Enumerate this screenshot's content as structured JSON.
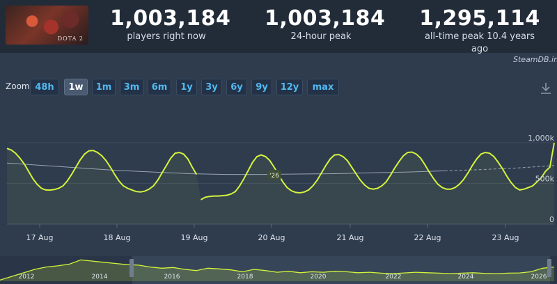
{
  "game": {
    "name": "DOTA 2"
  },
  "stats": [
    {
      "value": "1,003,184",
      "label": "players right now"
    },
    {
      "value": "1,003,184",
      "label": "24-hour peak"
    },
    {
      "value": "1,295,114",
      "label": "all-time peak 10.4 years ago"
    }
  ],
  "watermark": "SteamDB.info",
  "zoom": {
    "label": "Zoom",
    "buttons": [
      "48h",
      "1w",
      "1m",
      "3m",
      "6m",
      "1y",
      "3y",
      "6y",
      "9y",
      "12y",
      "max"
    ],
    "active": "1w"
  },
  "colors": {
    "line": "#d4f53c",
    "accent": "#52b8f0",
    "average": "#9aa5b2"
  },
  "chart_data": {
    "type": "line",
    "x_tick_labels": [
      "17 Aug",
      "18 Aug",
      "19 Aug",
      "20 Aug",
      "21 Aug",
      "22 Aug",
      "23 Aug"
    ],
    "y_tick_labels": [
      "1,000k",
      "500k",
      "0"
    ],
    "ylim": [
      0,
      1000000
    ],
    "series": [
      {
        "values": [
          930000,
          910000,
          870000,
          810000,
          740000,
          650000,
          560000,
          490000,
          440000,
          420000,
          418000,
          425000,
          440000,
          470000,
          530000,
          610000,
          700000,
          790000,
          860000,
          900000,
          905000,
          880000,
          840000,
          780000,
          700000,
          610000,
          530000,
          470000,
          440000,
          420000,
          400000,
          395000,
          405000,
          430000,
          470000,
          540000,
          630000,
          720000,
          810000,
          870000,
          880000,
          860000,
          800000,
          700000,
          610000,
          300000,
          330000,
          340000,
          345000,
          345000,
          350000,
          355000,
          370000,
          400000,
          470000,
          560000,
          660000,
          760000,
          830000,
          850000,
          830000,
          780000,
          700000,
          610000,
          520000,
          450000,
          410000,
          390000,
          385000,
          395000,
          420000,
          470000,
          540000,
          630000,
          720000,
          800000,
          850000,
          855000,
          830000,
          780000,
          700000,
          620000,
          540000,
          480000,
          440000,
          430000,
          440000,
          470000,
          520000,
          600000,
          690000,
          770000,
          840000,
          880000,
          885000,
          860000,
          810000,
          730000,
          640000,
          560000,
          490000,
          450000,
          430000,
          430000,
          450000,
          490000,
          550000,
          630000,
          720000,
          800000,
          860000,
          880000,
          870000,
          830000,
          760000,
          680000,
          590000,
          510000,
          450000,
          420000,
          430000,
          450000,
          470000,
          520000,
          570000,
          650000,
          700000,
          1000000
        ]
      }
    ],
    "average": [
      750000,
      720000,
      690000,
      660000,
      640000,
      620000,
      610000,
      610000,
      615000,
      620000,
      630000,
      640000,
      655000,
      670000,
      690000,
      720000
    ],
    "overview": {
      "x_tick_labels": [
        "2012",
        "2014",
        "2016",
        "2018",
        "2020",
        "2022",
        "2024",
        "2026"
      ],
      "series": [
        5,
        20,
        35,
        50,
        60,
        65,
        72,
        90,
        85,
        80,
        75,
        70,
        68,
        60,
        55,
        58,
        50,
        45,
        55,
        52,
        48,
        40,
        50,
        45,
        38,
        42,
        36,
        40,
        38,
        42,
        40,
        36,
        38,
        34,
        32,
        35,
        38,
        36,
        34,
        32,
        34,
        36,
        33,
        32,
        34,
        35,
        40,
        55,
        60
      ]
    }
  }
}
